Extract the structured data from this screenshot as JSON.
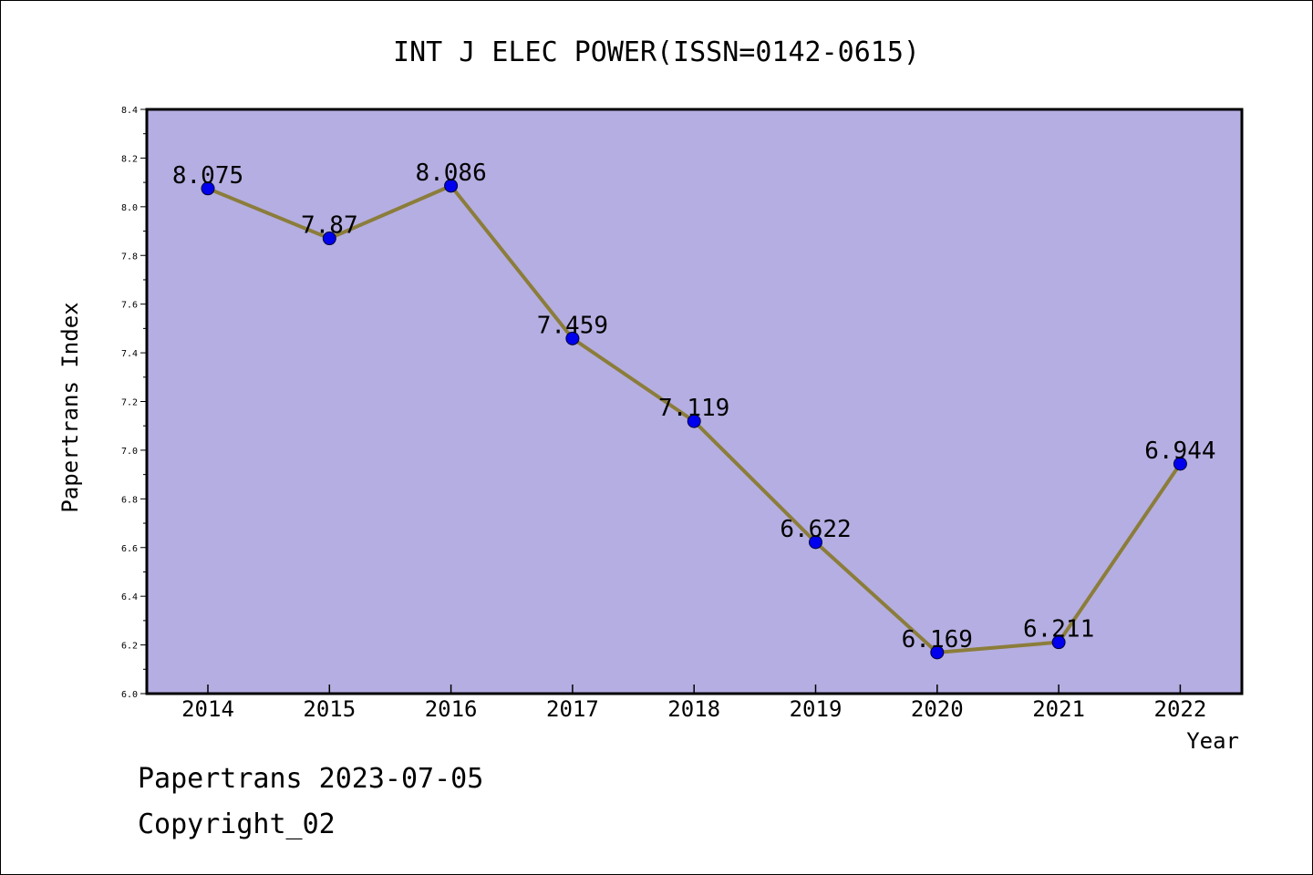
{
  "chart_data": {
    "type": "line",
    "title": "INT J ELEC POWER(ISSN=0142-0615)",
    "xlabel": "Year",
    "ylabel": "Papertrans Index",
    "categories": [
      "2014",
      "2015",
      "2016",
      "2017",
      "2018",
      "2019",
      "2020",
      "2021",
      "2022"
    ],
    "values": [
      8.075,
      7.87,
      8.086,
      7.459,
      7.119,
      6.622,
      6.169,
      6.211,
      6.944
    ],
    "data_labels": [
      "8.075",
      "7.87",
      "8.086",
      "7.459",
      "7.119",
      "6.622",
      "6.169",
      "6.211",
      "6.944"
    ],
    "ylim": [
      6.0,
      8.4
    ],
    "yticks": [
      "6.0",
      "6.2",
      "6.4",
      "6.6",
      "6.8",
      "7.0",
      "7.2",
      "7.4",
      "7.6",
      "7.8",
      "8.0",
      "8.2",
      "8.4"
    ],
    "grid": false,
    "colors": {
      "plot_bg": "#b5aee2",
      "line": "#8b7d3a",
      "marker": "#0000ee"
    }
  },
  "footer": {
    "line1": "Papertrans 2023-07-05",
    "line2": "Copyright_02"
  }
}
